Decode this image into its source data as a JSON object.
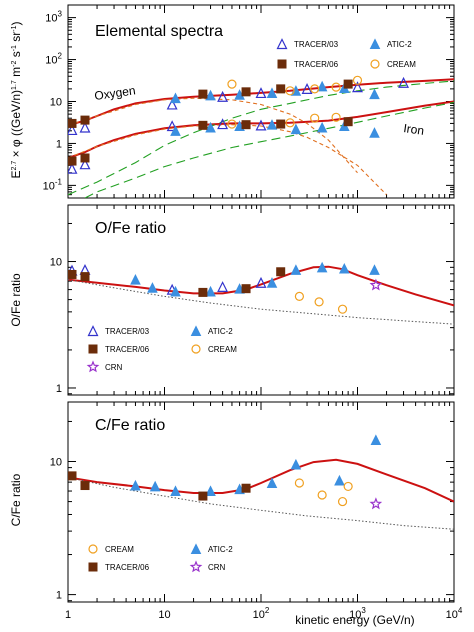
{
  "chart_data": [
    {
      "type": "line",
      "title": "Elemental spectra",
      "xlabel": "",
      "ylabel": "E^2.7 × φ ((GeV/n)^1.7 m^-2 s^-1 sr^-1)",
      "ylabel_parts": [
        "E",
        "2.7",
        " × φ ((GeV/n)",
        "1.7",
        " m",
        "-2",
        " s",
        "-1",
        " sr",
        "-1",
        ")"
      ],
      "x_scale": "log",
      "y_scale": "log",
      "xlim": [
        1,
        10000
      ],
      "ylim": [
        0.05,
        2000
      ],
      "xticks": [
        1,
        10,
        100,
        1000,
        10000
      ],
      "ytick_labels": [
        {
          "v": 0.1,
          "b": "10",
          "e": "-1"
        },
        {
          "v": 1,
          "b": "1",
          "e": ""
        },
        {
          "v": 10,
          "b": "10",
          "e": ""
        },
        {
          "v": 100,
          "b": "10",
          "e": "2"
        },
        {
          "v": 1000,
          "b": "10",
          "e": "3"
        }
      ],
      "annotations": [
        "Oxygen",
        "Iron"
      ],
      "legend": [
        {
          "label": "TRACER/03",
          "marker": "triangle-open",
          "color": "#3333cc"
        },
        {
          "label": "ATIC-2",
          "marker": "triangle-filled",
          "color": "#3b8fe0"
        },
        {
          "label": "TRACER/06",
          "marker": "square-filled",
          "color": "#6b2c0a"
        },
        {
          "label": "CREAM",
          "marker": "circle-open",
          "color": "#f0a020"
        }
      ],
      "curves": [
        {
          "name": "Oxygen model",
          "style": "solid",
          "color": "#cc1111",
          "x": [
            1,
            1.5,
            2,
            3,
            5,
            10,
            20,
            50,
            100,
            200,
            500,
            1000,
            2000,
            5000,
            10000
          ],
          "y": [
            2.7,
            3.5,
            4.5,
            6.5,
            9,
            11.5,
            13,
            14.5,
            16,
            18,
            22,
            25,
            28,
            31,
            34
          ]
        },
        {
          "name": "Iron model",
          "style": "solid",
          "color": "#cc1111",
          "x": [
            1,
            1.5,
            2,
            3,
            5,
            10,
            20,
            50,
            100,
            200,
            500,
            1000,
            2000,
            5000,
            10000
          ],
          "y": [
            0.45,
            0.62,
            0.85,
            1.2,
            1.7,
            2.3,
            2.7,
            3.0,
            3.0,
            3.1,
            3.5,
            4.3,
            5.6,
            8.0,
            10.0
          ]
        },
        {
          "name": "Oxygen component A",
          "style": "dashed",
          "color": "#e07020",
          "x": [
            1,
            2,
            5,
            10,
            20,
            50,
            100,
            200,
            300,
            500,
            1000
          ],
          "y": [
            2.7,
            4.5,
            8.5,
            11,
            12,
            11,
            8.5,
            5,
            3,
            1.2,
            0.2
          ]
        },
        {
          "name": "Iron component A",
          "style": "dashed",
          "color": "#e07020",
          "x": [
            1,
            2,
            5,
            10,
            20,
            50,
            100,
            200,
            300,
            500,
            1000,
            2000
          ],
          "y": [
            0.45,
            0.85,
            1.6,
            2.2,
            2.6,
            2.8,
            2.6,
            1.9,
            1.4,
            0.8,
            0.3,
            0.06
          ]
        },
        {
          "name": "Oxygen component B",
          "style": "dashed",
          "color": "#22a022",
          "x": [
            1,
            2,
            5,
            10,
            20,
            50,
            100,
            200,
            500,
            1000,
            2000,
            5000,
            10000
          ],
          "y": [
            0.06,
            0.12,
            0.35,
            0.9,
            1.8,
            4,
            6.5,
            9,
            14,
            18,
            22,
            27,
            31
          ]
        },
        {
          "name": "Iron component B",
          "style": "dashed",
          "color": "#22a022",
          "x": [
            1.5,
            2,
            5,
            10,
            20,
            50,
            100,
            200,
            500,
            1000,
            2000,
            5000,
            10000
          ],
          "y": [
            0.05,
            0.07,
            0.15,
            0.28,
            0.45,
            0.8,
            1.1,
            1.5,
            2.3,
            3.2,
            4.5,
            7,
            9.5
          ]
        }
      ],
      "series": [
        {
          "name": "TRACER/03",
          "marker": "triangle-open",
          "color": "#3333cc",
          "x": [
            1.1,
            1.5,
            12,
            40,
            100,
            300,
            1000,
            3000,
            1.1,
            1.5,
            12,
            40,
            100
          ],
          "y": [
            2.1,
            2.4,
            8.5,
            13,
            16,
            20,
            22,
            28,
            0.25,
            0.32,
            2.6,
            2.9,
            2.7
          ]
        },
        {
          "name": "ATIC-2",
          "marker": "triangle-filled",
          "color": "#3b8fe0",
          "x": [
            13,
            30,
            60,
            130,
            230,
            430,
            730,
            1500,
            13,
            30,
            60,
            130,
            230,
            430,
            730,
            1500
          ],
          "y": [
            12,
            14,
            14.5,
            16,
            18,
            23,
            21,
            15,
            2.0,
            2.4,
            2.6,
            2.8,
            2.2,
            2.4,
            2.6,
            1.8
          ]
        },
        {
          "name": "TRACER/06",
          "marker": "square-filled",
          "color": "#6b2c0a",
          "x": [
            1.1,
            1.5,
            25,
            70,
            160,
            800,
            1.1,
            1.5,
            25,
            70,
            160,
            800
          ],
          "y": [
            3.0,
            3.6,
            15,
            17,
            20,
            26,
            0.38,
            0.45,
            2.7,
            2.8,
            2.9,
            3.3
          ]
        },
        {
          "name": "CREAM",
          "marker": "circle-open",
          "color": "#f0a020",
          "x": [
            50,
            200,
            360,
            600,
            1000,
            50,
            200,
            360,
            600
          ],
          "y": [
            26,
            18,
            20,
            22,
            32,
            2.9,
            3.1,
            4.0,
            4.2
          ]
        }
      ]
    },
    {
      "type": "line",
      "title": "O/Fe ratio",
      "xlabel": "",
      "ylabel": "O/Fe ratio",
      "x_scale": "log",
      "y_scale": "log",
      "xlim": [
        1,
        10000
      ],
      "ylim": [
        0.88,
        28
      ],
      "xticks": [
        1,
        10,
        100,
        1000,
        10000
      ],
      "ytick_labels": [
        {
          "v": 1,
          "b": "1",
          "e": ""
        },
        {
          "v": 10,
          "b": "10",
          "e": ""
        }
      ],
      "legend": [
        {
          "label": "TRACER/03",
          "marker": "triangle-open",
          "color": "#3333cc"
        },
        {
          "label": "ATIC-2",
          "marker": "triangle-filled",
          "color": "#3b8fe0"
        },
        {
          "label": "TRACER/06",
          "marker": "square-filled",
          "color": "#6b2c0a"
        },
        {
          "label": "CREAM",
          "marker": "circle-open",
          "color": "#f0a020"
        },
        {
          "label": "CRN",
          "marker": "star-open",
          "color": "#9933cc"
        }
      ],
      "curves": [
        {
          "name": "model",
          "style": "solid",
          "color": "#cc1111",
          "x": [
            1,
            2,
            5,
            10,
            20,
            40,
            70,
            100,
            200,
            350,
            500,
            700,
            1000,
            2000,
            4000,
            10000
          ],
          "y": [
            7.2,
            6.8,
            6.3,
            5.9,
            5.6,
            5.6,
            6.0,
            6.6,
            8.0,
            9.0,
            9.1,
            8.7,
            7.8,
            6.5,
            5.5,
            4.5
          ]
        },
        {
          "name": "baseline",
          "style": "dotted",
          "color": "#555555",
          "x": [
            1,
            3,
            10,
            30,
            100,
            300,
            1000,
            3000,
            10000
          ],
          "y": [
            7.2,
            6.2,
            5.3,
            4.7,
            4.2,
            3.9,
            3.6,
            3.4,
            3.2
          ]
        }
      ],
      "series": [
        {
          "name": "TRACER/03",
          "marker": "triangle-open",
          "color": "#3333cc",
          "x": [
            1.1,
            1.5,
            12,
            40,
            100
          ],
          "y": [
            8.5,
            8.6,
            6.0,
            6.3,
            6.8
          ]
        },
        {
          "name": "ATIC-2",
          "marker": "triangle-filled",
          "color": "#3b8fe0",
          "x": [
            5,
            7.5,
            13,
            30,
            60,
            130,
            230,
            430,
            730,
            1500
          ],
          "y": [
            7.2,
            6.2,
            5.8,
            5.8,
            6.1,
            6.8,
            8.6,
            9.0,
            8.8,
            8.6
          ]
        },
        {
          "name": "TRACER/06",
          "marker": "square-filled",
          "color": "#6b2c0a",
          "x": [
            1.1,
            1.5,
            25,
            70,
            160
          ],
          "y": [
            7.9,
            7.6,
            5.7,
            6.1,
            8.3
          ]
        },
        {
          "name": "CREAM",
          "marker": "circle-open",
          "color": "#f0a020",
          "x": [
            250,
            400,
            700
          ],
          "y": [
            5.3,
            4.8,
            4.2
          ]
        },
        {
          "name": "CRN",
          "marker": "star-open",
          "color": "#9933cc",
          "x": [
            1550
          ],
          "y": [
            6.5
          ]
        }
      ]
    },
    {
      "type": "line",
      "title": "C/Fe ratio",
      "xlabel": "kinetic energy (GeV/n)",
      "ylabel": "C/Fe ratio",
      "x_scale": "log",
      "y_scale": "log",
      "xlim": [
        1,
        10000
      ],
      "ylim": [
        0.88,
        28
      ],
      "xticks": [
        1,
        10,
        100,
        1000,
        10000
      ],
      "xtick_labels": [
        {
          "v": 1,
          "b": "1",
          "e": ""
        },
        {
          "v": 10,
          "b": "10",
          "e": ""
        },
        {
          "v": 100,
          "b": "10",
          "e": "2"
        },
        {
          "v": 1000,
          "b": "10",
          "e": "3"
        },
        {
          "v": 10000,
          "b": "10",
          "e": "4"
        }
      ],
      "ytick_labels": [
        {
          "v": 1,
          "b": "1",
          "e": ""
        },
        {
          "v": 10,
          "b": "10",
          "e": ""
        }
      ],
      "legend": [
        {
          "label": "CREAM",
          "marker": "circle-open",
          "color": "#f0a020"
        },
        {
          "label": "ATIC-2",
          "marker": "triangle-filled",
          "color": "#3b8fe0"
        },
        {
          "label": "TRACER/06",
          "marker": "square-filled",
          "color": "#6b2c0a"
        },
        {
          "label": "CRN",
          "marker": "star-open",
          "color": "#9933cc"
        }
      ],
      "curves": [
        {
          "name": "model",
          "style": "solid",
          "color": "#cc1111",
          "x": [
            1,
            2,
            5,
            10,
            20,
            40,
            70,
            100,
            200,
            350,
            600,
            1000,
            2000,
            5000,
            10000
          ],
          "y": [
            7.6,
            7.0,
            6.5,
            6.1,
            5.8,
            5.8,
            6.2,
            6.9,
            8.6,
            9.9,
            10.3,
            9.6,
            8.0,
            6.3,
            5.0
          ]
        },
        {
          "name": "baseline",
          "style": "dotted",
          "color": "#555555",
          "x": [
            1,
            3,
            10,
            30,
            100,
            300,
            1000,
            3000,
            10000
          ],
          "y": [
            7.6,
            6.4,
            5.5,
            4.8,
            4.3,
            3.9,
            3.6,
            3.3,
            3.1
          ]
        }
      ],
      "series": [
        {
          "name": "ATIC-2",
          "marker": "triangle-filled",
          "color": "#3b8fe0",
          "x": [
            5,
            8,
            13,
            30,
            60,
            130,
            230,
            650,
            1550
          ],
          "y": [
            6.6,
            6.5,
            6.0,
            6.0,
            6.2,
            6.9,
            9.5,
            7.2,
            14.5
          ]
        },
        {
          "name": "TRACER/06",
          "marker": "square-filled",
          "color": "#6b2c0a",
          "x": [
            1.1,
            1.5,
            25,
            70
          ],
          "y": [
            7.8,
            6.6,
            5.5,
            6.3
          ]
        },
        {
          "name": "CREAM",
          "marker": "circle-open",
          "color": "#f0a020",
          "x": [
            250,
            430,
            700,
            800
          ],
          "y": [
            6.9,
            5.6,
            5.0,
            6.5
          ]
        },
        {
          "name": "CRN",
          "marker": "star-open",
          "color": "#9933cc",
          "x": [
            1550
          ],
          "y": [
            4.8
          ]
        }
      ]
    }
  ]
}
